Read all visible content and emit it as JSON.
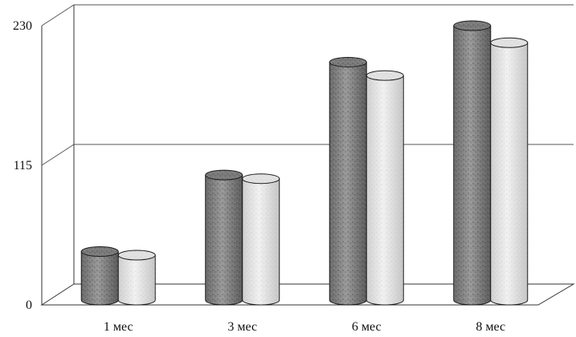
{
  "chart_data": {
    "type": "bar",
    "title": "",
    "xlabel": "",
    "ylabel": "",
    "categories": [
      "1 мес",
      "3 мес",
      "6 мес",
      "8 мес"
    ],
    "series": [
      {
        "values": [
          40,
          103,
          196,
          226
        ]
      },
      {
        "values": [
          37,
          100,
          185,
          212
        ]
      }
    ],
    "ylim": [
      0,
      230
    ],
    "yticks": [
      "0",
      "115",
      "230"
    ],
    "grid": true,
    "legend": "none",
    "style": "3d-cylinder"
  },
  "colors": {
    "series_dark": "#8a8a8a",
    "series_light": "#e6e6e6",
    "axis": "#333333",
    "grid": "#555555"
  }
}
